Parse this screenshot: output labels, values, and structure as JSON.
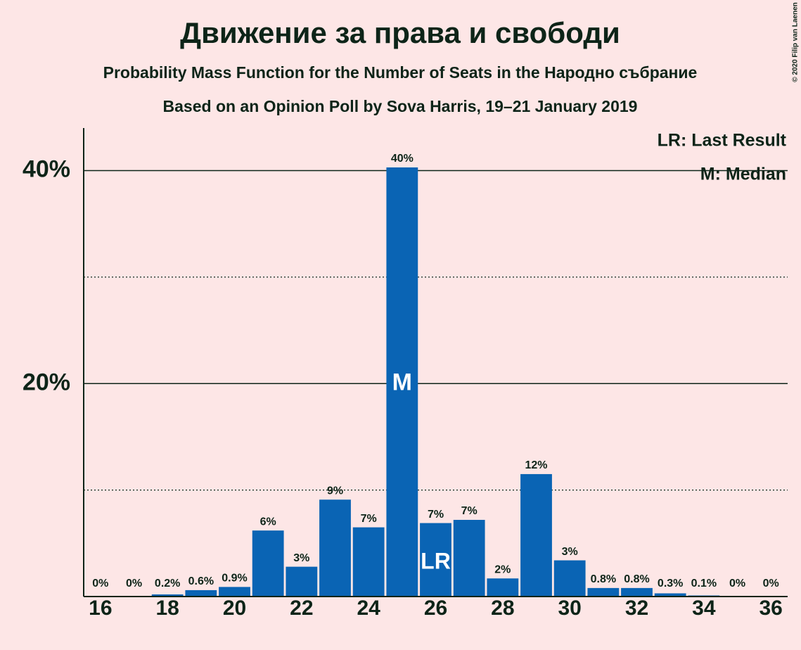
{
  "chart_data": {
    "type": "bar",
    "title": "Движение за права и свободи",
    "subtitle": "Probability Mass Function for the Number of Seats in the Народно събрание",
    "subtitle2": "Based on an Opinion Poll by Sova Harris, 19–21 January 2019",
    "copyright": "© 2020 Filip van Laenen",
    "x": [
      16,
      17,
      18,
      19,
      20,
      21,
      22,
      23,
      24,
      25,
      26,
      27,
      28,
      29,
      30,
      31,
      32,
      33,
      34,
      35,
      36
    ],
    "values": [
      0,
      0,
      0.2,
      0.6,
      0.9,
      6.2,
      2.8,
      9.1,
      6.5,
      40.3,
      6.9,
      7.2,
      1.7,
      11.5,
      3.4,
      0.8,
      0.8,
      0.3,
      0.1,
      0,
      0
    ],
    "value_labels": [
      "0%",
      "0%",
      "0.2%",
      "0.6%",
      "0.9%",
      "6%",
      "3%",
      "9%",
      "7%",
      "40%",
      "7%",
      "7%",
      "2%",
      "12%",
      "3%",
      "0.8%",
      "0.8%",
      "0.3%",
      "0.1%",
      "0%",
      "0%"
    ],
    "color": "#0a64b4",
    "xlim": [
      15.5,
      36.5
    ],
    "xticks": [
      16,
      18,
      20,
      22,
      24,
      26,
      28,
      30,
      32,
      34,
      36
    ],
    "ylim": [
      0,
      44
    ],
    "yticks": [
      {
        "value": 20,
        "label": "20%"
      },
      {
        "value": 40,
        "label": "40%"
      }
    ],
    "minor_gridlines": [
      10,
      30
    ],
    "grid": true,
    "median": 25,
    "median_label": "M",
    "last_result": 26,
    "last_result_label": "LR",
    "legend": [
      "LR: Last Result",
      "M: Median"
    ],
    "legend_position": "top-right"
  }
}
